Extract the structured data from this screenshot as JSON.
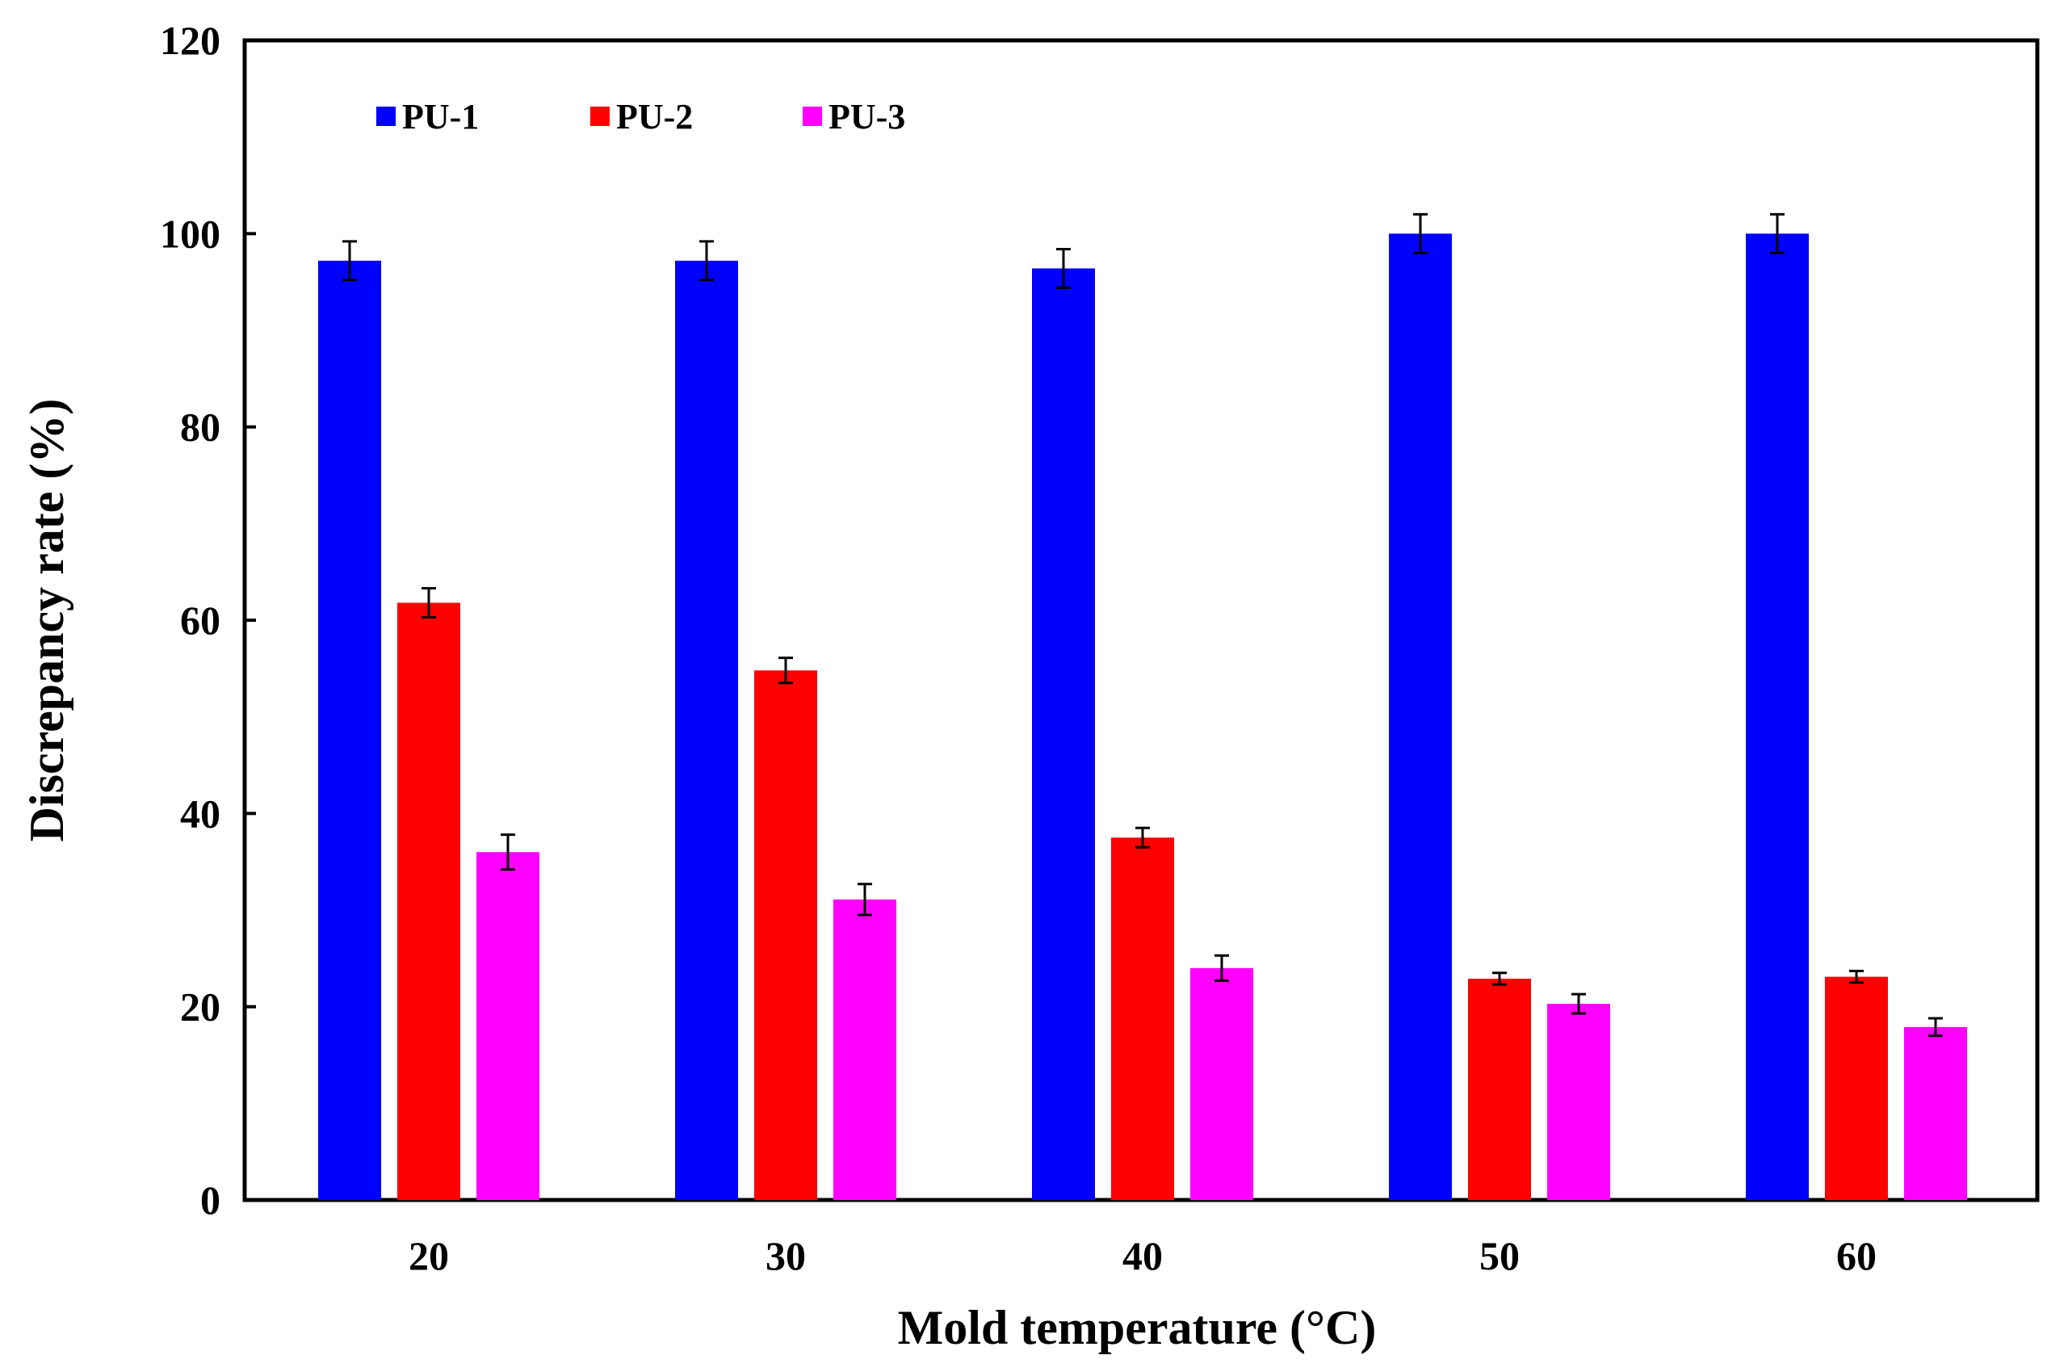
{
  "chart_data": {
    "type": "bar",
    "title": "",
    "xlabel": "Mold temperature (°C)",
    "ylabel": "Discrepancy rate (%)",
    "ylim": [
      0,
      120
    ],
    "yticks": [
      "0",
      "20",
      "40",
      "60",
      "80",
      "100",
      "120"
    ],
    "categories": [
      "20",
      "30",
      "40",
      "50",
      "60"
    ],
    "legend_position": "top-left",
    "grid": false,
    "series": [
      {
        "name": "PU-1",
        "color": "#0000ff",
        "values": [
          97.2,
          97.2,
          96.4,
          100.0,
          100.0
        ],
        "errors": [
          2.0,
          2.0,
          2.0,
          2.0,
          2.0
        ]
      },
      {
        "name": "PU-2",
        "color": "#ff0000",
        "values": [
          61.8,
          54.8,
          37.5,
          22.9,
          23.1
        ],
        "errors": [
          1.5,
          1.3,
          1.0,
          0.6,
          0.6
        ]
      },
      {
        "name": "PU-3",
        "color": "#ff00ff",
        "values": [
          36.0,
          31.1,
          24.0,
          20.3,
          17.9
        ],
        "errors": [
          1.8,
          1.6,
          1.3,
          1.0,
          0.9
        ]
      }
    ]
  }
}
